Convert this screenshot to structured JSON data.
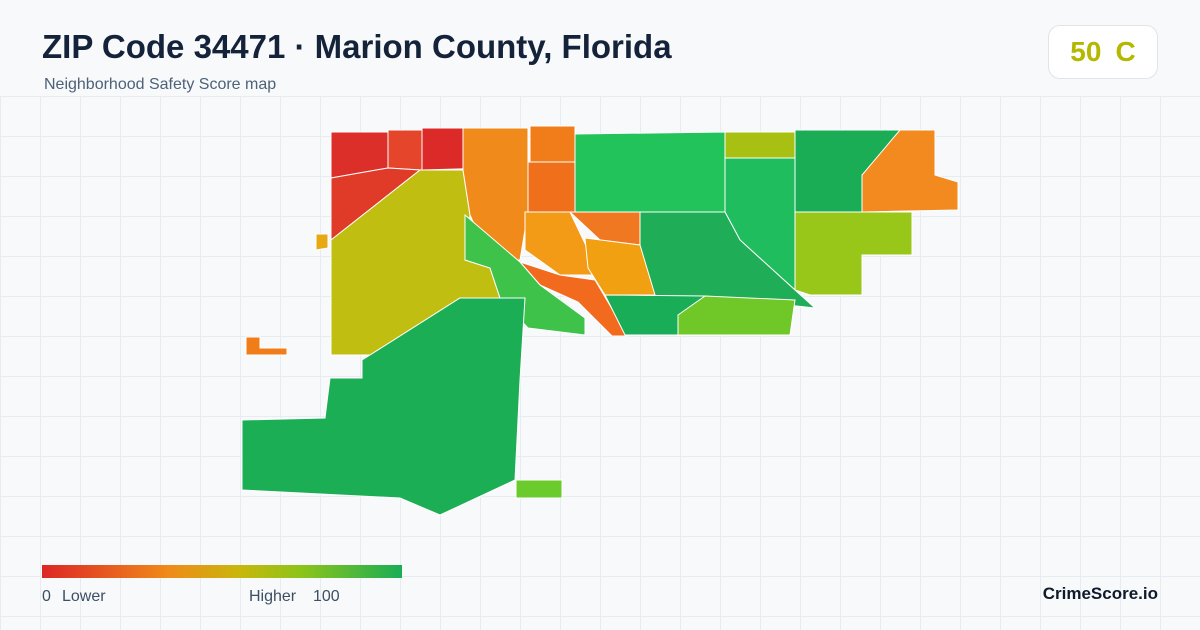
{
  "header": {
    "title": "ZIP Code 34471 · Marion County, Florida",
    "subtitle": "Neighborhood Safety Score map"
  },
  "score": {
    "value": 50,
    "grade": "C"
  },
  "legend": {
    "min": 0,
    "min_label": "Lower",
    "max_label": "Higher",
    "max": 100
  },
  "brand": "CrimeScore.io"
}
